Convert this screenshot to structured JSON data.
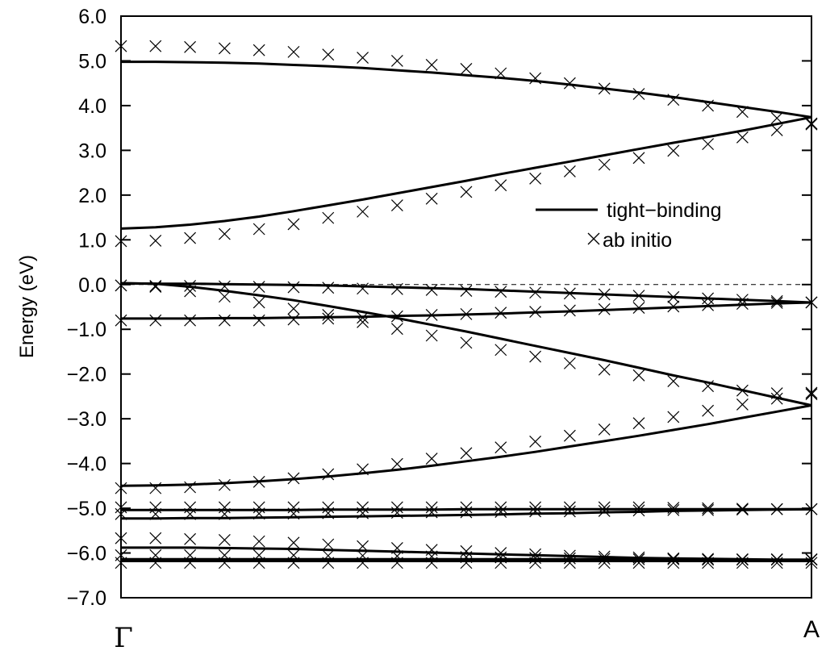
{
  "chart_data": {
    "type": "line",
    "title": "",
    "xlabel": "",
    "ylabel": "Energy (eV)",
    "ylim": [
      -7.0,
      6.0
    ],
    "xlim": [
      0,
      1
    ],
    "y_ticks": [
      "6.0",
      "5.0",
      "4.0",
      "3.0",
      "2.0",
      "1.0",
      "0.0",
      "−1.0",
      "−2.0",
      "−3.0",
      "−4.0",
      "−5.0",
      "−6.0",
      "−7.0"
    ],
    "y_tick_values": [
      6,
      5,
      4,
      3,
      2,
      1,
      0,
      -1,
      -2,
      -3,
      -4,
      -5,
      -6,
      -7
    ],
    "x_labels": {
      "start": "Γ",
      "end": "A"
    },
    "fermi_level": 0.0,
    "grid": false,
    "legend": {
      "position": "right",
      "entries": [
        {
          "label": "tight−binding",
          "marker": "line"
        },
        {
          "label": "ab initio",
          "marker": "x"
        }
      ]
    },
    "tight_binding": {
      "name": "tight−binding",
      "x": [
        0,
        0.05,
        0.1,
        0.15,
        0.2,
        0.25,
        0.3,
        0.35,
        0.4,
        0.45,
        0.5,
        0.55,
        0.6,
        0.65,
        0.7,
        0.75,
        0.8,
        0.85,
        0.9,
        0.95,
        1.0
      ],
      "bands": [
        [
          4.98,
          4.98,
          4.97,
          4.96,
          4.94,
          4.91,
          4.88,
          4.84,
          4.79,
          4.74,
          4.68,
          4.62,
          4.55,
          4.47,
          4.38,
          4.29,
          4.19,
          4.08,
          3.97,
          3.86,
          3.74
        ],
        [
          1.25,
          1.28,
          1.34,
          1.42,
          1.52,
          1.64,
          1.77,
          1.9,
          2.04,
          2.18,
          2.32,
          2.47,
          2.61,
          2.75,
          2.89,
          3.03,
          3.17,
          3.3,
          3.44,
          3.59,
          3.74
        ],
        [
          0.03,
          0.02,
          0.02,
          0.01,
          0.0,
          -0.01,
          -0.02,
          -0.04,
          -0.06,
          -0.08,
          -0.1,
          -0.13,
          -0.16,
          -0.19,
          -0.22,
          -0.25,
          -0.28,
          -0.31,
          -0.34,
          -0.37,
          -0.4
        ],
        [
          0.03,
          0.02,
          -0.05,
          -0.14,
          -0.24,
          -0.35,
          -0.48,
          -0.61,
          -0.75,
          -0.9,
          -1.05,
          -1.21,
          -1.37,
          -1.53,
          -1.69,
          -1.86,
          -2.03,
          -2.19,
          -2.36,
          -2.53,
          -2.7
        ],
        [
          -0.76,
          -0.76,
          -0.76,
          -0.75,
          -0.75,
          -0.74,
          -0.73,
          -0.72,
          -0.7,
          -0.69,
          -0.67,
          -0.65,
          -0.62,
          -0.6,
          -0.57,
          -0.54,
          -0.51,
          -0.48,
          -0.45,
          -0.42,
          -0.4
        ],
        [
          -4.5,
          -4.49,
          -4.47,
          -4.44,
          -4.4,
          -4.35,
          -4.29,
          -4.22,
          -4.14,
          -4.05,
          -3.95,
          -3.85,
          -3.74,
          -3.62,
          -3.5,
          -3.38,
          -3.25,
          -3.12,
          -2.98,
          -2.84,
          -2.7
        ],
        [
          -5.04,
          -5.04,
          -5.04,
          -5.04,
          -5.04,
          -5.04,
          -5.03,
          -5.03,
          -5.03,
          -5.03,
          -5.02,
          -5.02,
          -5.02,
          -5.02,
          -5.02,
          -5.02,
          -5.02,
          -5.02,
          -5.02,
          -5.02,
          -5.02
        ],
        [
          -5.23,
          -5.23,
          -5.22,
          -5.22,
          -5.21,
          -5.2,
          -5.19,
          -5.18,
          -5.17,
          -5.16,
          -5.15,
          -5.14,
          -5.12,
          -5.11,
          -5.09,
          -5.08,
          -5.06,
          -5.05,
          -5.04,
          -5.03,
          -5.02
        ],
        [
          -5.88,
          -5.88,
          -5.88,
          -5.89,
          -5.9,
          -5.91,
          -5.93,
          -5.95,
          -5.97,
          -5.99,
          -6.01,
          -6.03,
          -6.05,
          -6.07,
          -6.09,
          -6.11,
          -6.12,
          -6.13,
          -6.14,
          -6.15,
          -6.15
        ],
        [
          -6.14,
          -6.14,
          -6.14,
          -6.14,
          -6.14,
          -6.14,
          -6.14,
          -6.14,
          -6.14,
          -6.14,
          -6.14,
          -6.14,
          -6.14,
          -6.14,
          -6.14,
          -6.14,
          -6.14,
          -6.15,
          -6.15,
          -6.15,
          -6.15
        ],
        [
          -6.18,
          -6.18,
          -6.18,
          -6.18,
          -6.18,
          -6.18,
          -6.18,
          -6.18,
          -6.18,
          -6.18,
          -6.18,
          -6.18,
          -6.18,
          -6.18,
          -6.18,
          -6.18,
          -6.18,
          -6.18,
          -6.18,
          -6.18,
          -6.18
        ]
      ]
    },
    "ab_initio": {
      "name": "ab initio",
      "x": [
        0,
        0.05,
        0.1,
        0.15,
        0.2,
        0.25,
        0.3,
        0.35,
        0.4,
        0.45,
        0.5,
        0.55,
        0.6,
        0.65,
        0.7,
        0.75,
        0.8,
        0.85,
        0.9,
        0.95,
        1.0
      ],
      "bands": [
        [
          5.33,
          5.33,
          5.31,
          5.28,
          5.24,
          5.2,
          5.14,
          5.07,
          5.0,
          4.91,
          4.82,
          4.72,
          4.61,
          4.5,
          4.38,
          4.26,
          4.13,
          4.0,
          3.86,
          3.72,
          3.58
        ],
        [
          0.97,
          0.98,
          1.04,
          1.13,
          1.24,
          1.35,
          1.49,
          1.63,
          1.77,
          1.92,
          2.07,
          2.22,
          2.37,
          2.53,
          2.68,
          2.83,
          2.99,
          3.14,
          3.29,
          3.45,
          3.6
        ],
        [
          -0.02,
          -0.03,
          -0.03,
          -0.04,
          -0.05,
          -0.06,
          -0.07,
          -0.09,
          -0.1,
          -0.12,
          -0.14,
          -0.16,
          -0.18,
          -0.2,
          -0.22,
          -0.25,
          -0.28,
          -0.31,
          -0.34,
          -0.37,
          -0.4
        ],
        [
          -0.02,
          -0.05,
          -0.15,
          -0.27,
          -0.4,
          -0.54,
          -0.68,
          -0.84,
          -0.99,
          -1.14,
          -1.3,
          -1.46,
          -1.61,
          -1.76,
          -1.9,
          -2.03,
          -2.16,
          -2.27,
          -2.37,
          -2.43,
          -2.45
        ],
        [
          -0.8,
          -0.8,
          -0.8,
          -0.8,
          -0.8,
          -0.78,
          -0.76,
          -0.74,
          -0.71,
          -0.68,
          -0.66,
          -0.63,
          -0.61,
          -0.58,
          -0.55,
          -0.52,
          -0.49,
          -0.46,
          -0.43,
          -0.41,
          -0.4
        ],
        [
          -4.55,
          -4.55,
          -4.53,
          -4.48,
          -4.41,
          -4.33,
          -4.24,
          -4.13,
          -4.01,
          -3.89,
          -3.77,
          -3.64,
          -3.51,
          -3.38,
          -3.24,
          -3.1,
          -2.96,
          -2.82,
          -2.68,
          -2.55,
          -2.42
        ],
        [
          -4.98,
          -4.98,
          -4.98,
          -4.98,
          -4.98,
          -4.98,
          -4.98,
          -4.98,
          -4.98,
          -4.98,
          -4.98,
          -4.98,
          -4.98,
          -4.98,
          -4.98,
          -4.98,
          -4.99,
          -5.0,
          -5.01,
          -5.02,
          -5.02
        ],
        [
          -5.13,
          -5.13,
          -5.13,
          -5.13,
          -5.12,
          -5.12,
          -5.11,
          -5.11,
          -5.1,
          -5.09,
          -5.09,
          -5.08,
          -5.07,
          -5.07,
          -5.06,
          -5.05,
          -5.04,
          -5.04,
          -5.03,
          -5.02,
          -5.02
        ],
        [
          -5.67,
          -5.67,
          -5.69,
          -5.71,
          -5.74,
          -5.77,
          -5.81,
          -5.85,
          -5.89,
          -5.93,
          -5.96,
          -6.0,
          -6.03,
          -6.06,
          -6.08,
          -6.1,
          -6.12,
          -6.13,
          -6.14,
          -6.14,
          -6.14
        ],
        [
          -6.05,
          -6.05,
          -6.05,
          -6.05,
          -6.05,
          -6.05,
          -6.06,
          -6.06,
          -6.07,
          -6.08,
          -6.09,
          -6.1,
          -6.11,
          -6.12,
          -6.13,
          -6.14,
          -6.14,
          -6.15,
          -6.15,
          -6.15,
          -6.15
        ],
        [
          -6.22,
          -6.22,
          -6.22,
          -6.22,
          -6.22,
          -6.22,
          -6.22,
          -6.22,
          -6.22,
          -6.22,
          -6.22,
          -6.22,
          -6.22,
          -6.22,
          -6.22,
          -6.22,
          -6.22,
          -6.22,
          -6.22,
          -6.22,
          -6.22
        ]
      ]
    }
  }
}
